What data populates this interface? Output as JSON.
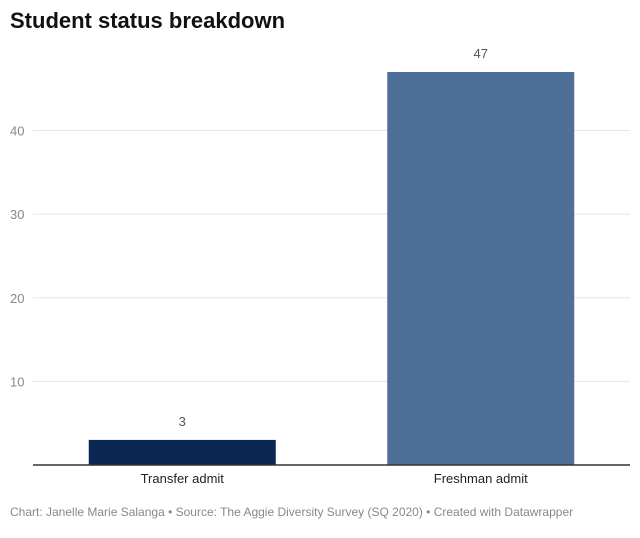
{
  "header": {
    "title": "Student status breakdown"
  },
  "footer": {
    "parts": [
      "Chart: Janelle Marie Salanga",
      "Source: The Aggie Diversity Survey (SQ 2020)",
      "Created with Datawrapper"
    ],
    "separator": " • "
  },
  "colors": {
    "transfer": "#0c2753",
    "freshman": "#4e6f97",
    "grid": "#e5e5e5",
    "axis": "#333333"
  },
  "chart_data": {
    "type": "bar",
    "title": "Student status breakdown",
    "xlabel": "",
    "ylabel": "",
    "categories": [
      "Transfer admit",
      "Freshman admit"
    ],
    "values": [
      3,
      47
    ],
    "data_labels": [
      "3",
      "47"
    ],
    "bar_colors": [
      "#0c2753",
      "#4e6f97"
    ],
    "ylim": [
      0,
      47
    ],
    "yticks": [
      10,
      20,
      30,
      40
    ],
    "grid": true,
    "legend": "none"
  }
}
